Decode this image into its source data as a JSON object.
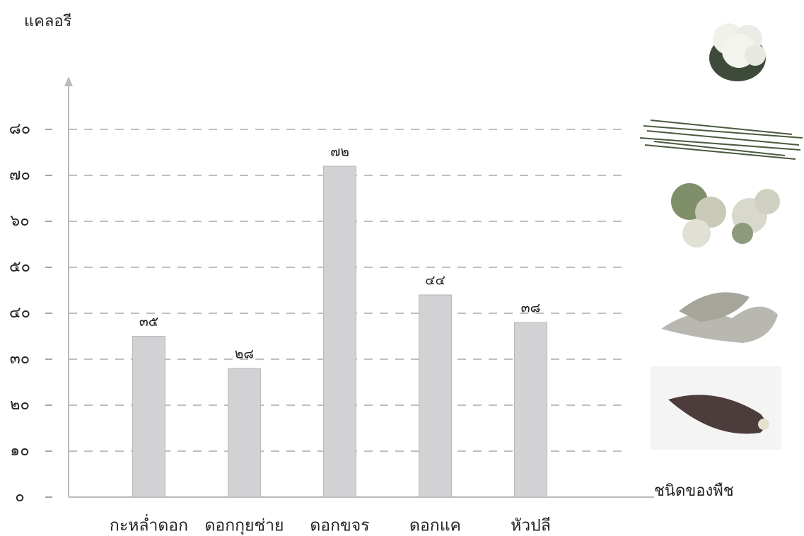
{
  "chart_data": {
    "type": "bar",
    "y_label": "แคลอรี",
    "x_label": "ชนิดของพืช",
    "categories": [
      "กะหล่ำดอก",
      "ดอกกุยช่าย",
      "ดอกขจร",
      "ดอกแค",
      "หัวปลี"
    ],
    "values": [
      35,
      28,
      72,
      44,
      38
    ],
    "value_labels": [
      "๓๕",
      "๒๘",
      "๗๒",
      "๔๔",
      "๓๘"
    ],
    "color": "#d2d2d4",
    "ylim": [
      0,
      90
    ],
    "yticks": [
      {
        "value": 0,
        "label": "๐"
      },
      {
        "value": 10,
        "label": "๑๐"
      },
      {
        "value": 20,
        "label": "๒๐"
      },
      {
        "value": 30,
        "label": "๓๐"
      },
      {
        "value": 40,
        "label": "๔๐"
      },
      {
        "value": 50,
        "label": "๕๐"
      },
      {
        "value": 60,
        "label": "๖๐"
      },
      {
        "value": 70,
        "label": "๗๐"
      },
      {
        "value": 80,
        "label": "๘๐"
      }
    ],
    "grid": true
  }
}
